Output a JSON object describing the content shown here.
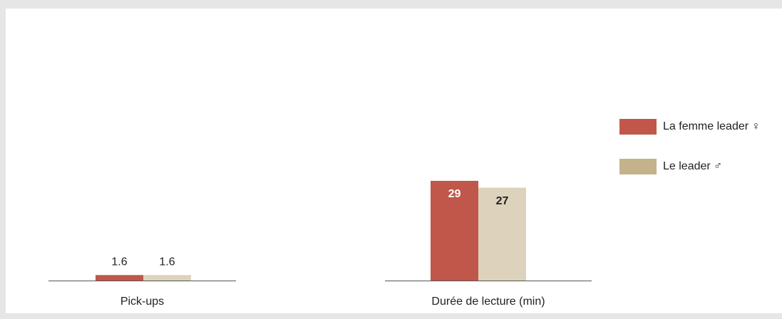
{
  "chart_data": {
    "type": "bar",
    "categories": [
      "Pick-ups",
      "Durée de lecture (min)"
    ],
    "series": [
      {
        "name": "La femme leader ♀",
        "color": "#c0574a",
        "values": [
          1.6,
          29
        ]
      },
      {
        "name": "Le leader ♂",
        "color": "#c4b28a",
        "bar_color": "#ddd3bc",
        "values": [
          1.6,
          27
        ]
      }
    ],
    "ylim": [
      0,
      35
    ],
    "legend": "right"
  }
}
